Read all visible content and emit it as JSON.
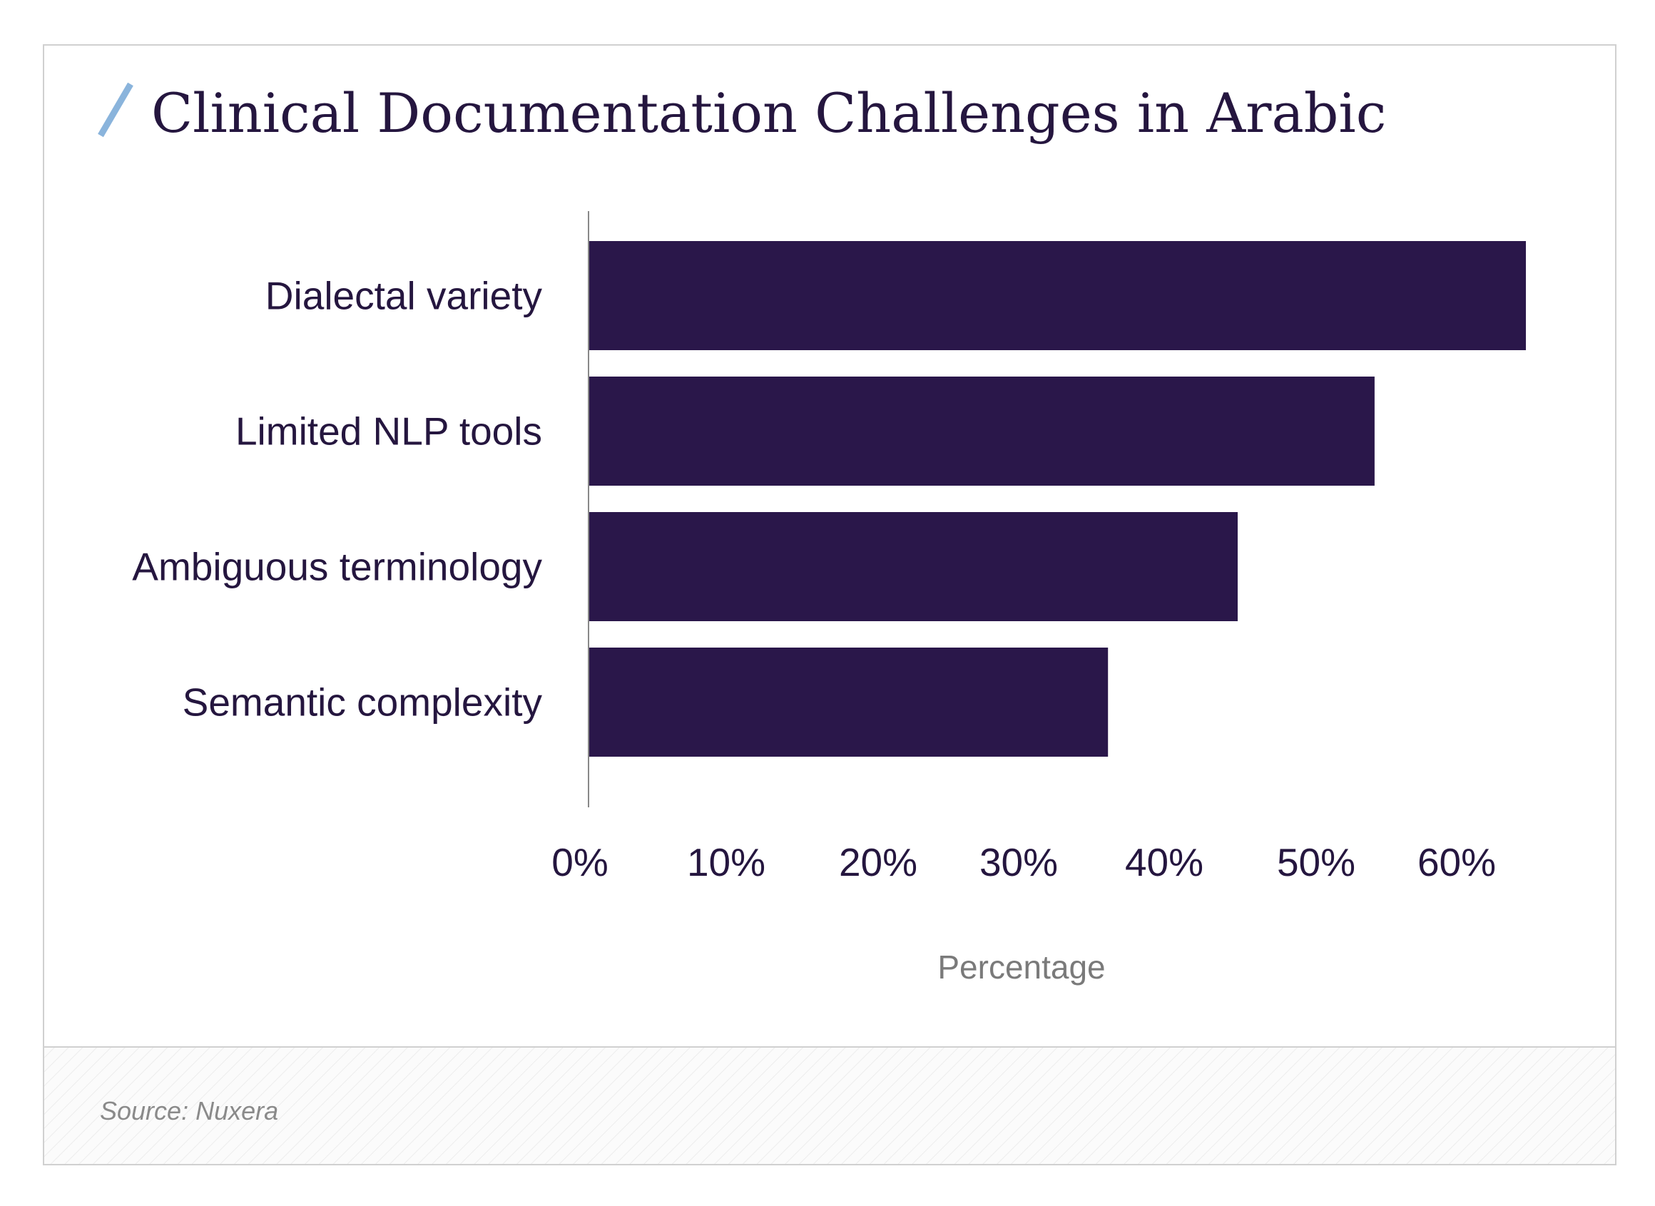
{
  "chart_data": {
    "type": "bar",
    "orientation": "horizontal",
    "title": "Clinical Documentation Challenges in Arabic",
    "categories": [
      "Dialectal variety",
      "Limited NLP tools",
      "Ambiguous terminology",
      "Semantic complexity"
    ],
    "values": [
      65,
      54.5,
      45,
      36
    ],
    "xlabel": "Percentage",
    "ylabel": "",
    "xticks": [
      "0%",
      "10%",
      "20%",
      "30%",
      "40%",
      "50%",
      "60%"
    ],
    "xlim": [
      0,
      65
    ],
    "grid": false,
    "legend": "none",
    "bar_color": "#2a174a",
    "accent_color": "#8ab4dc",
    "source": "Source: Nuxera"
  }
}
